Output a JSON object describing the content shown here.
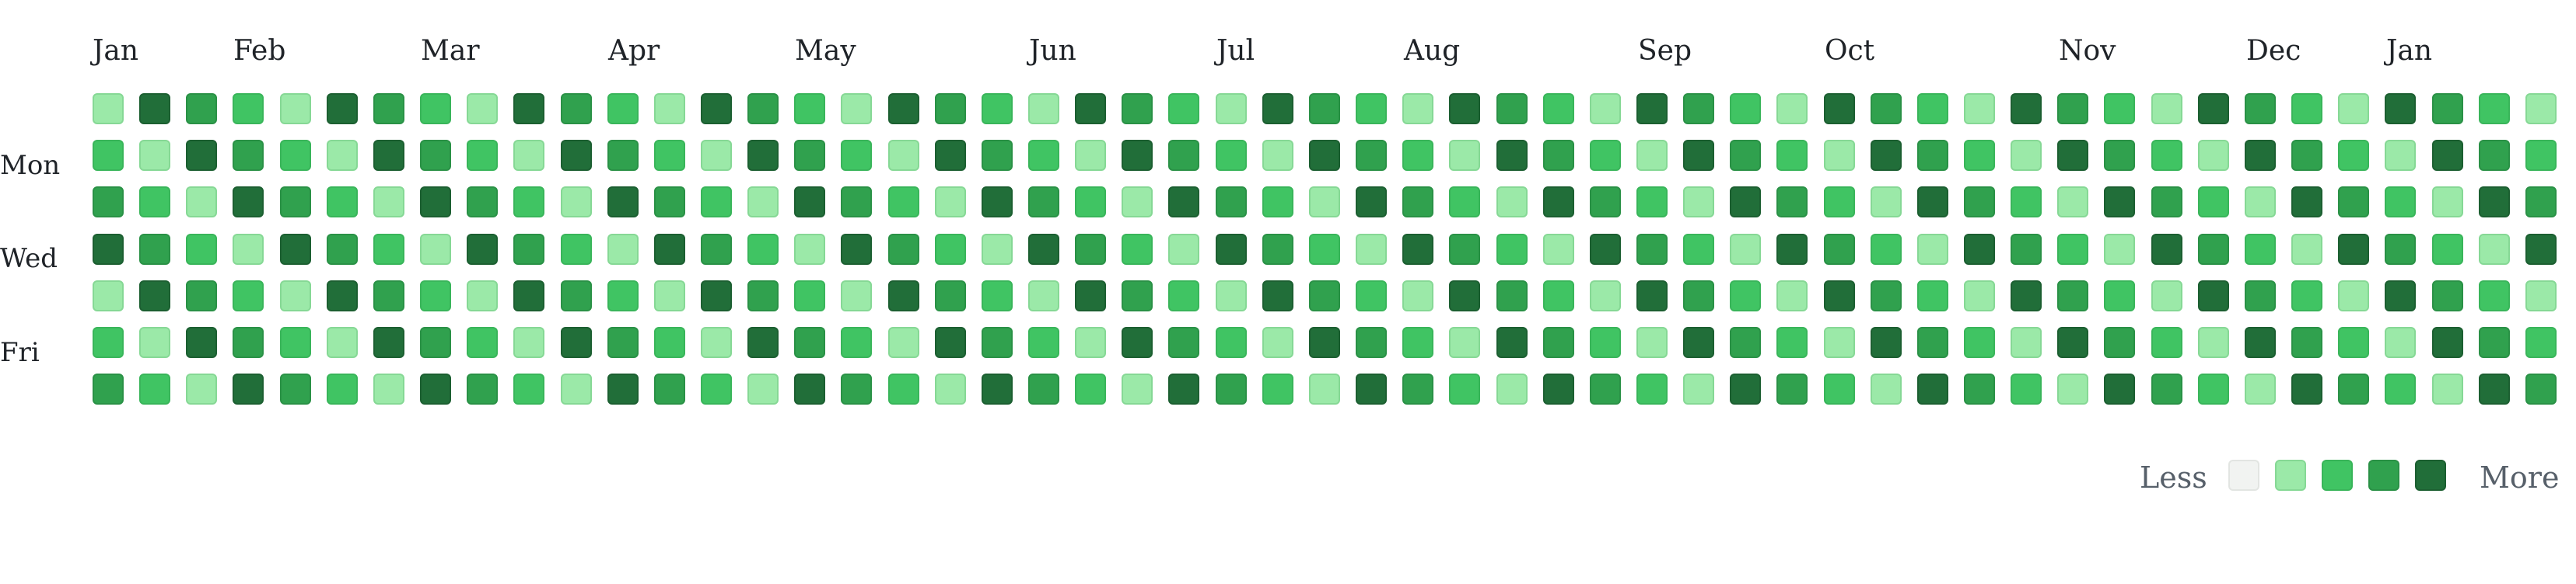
{
  "graph": {
    "months": [
      "Jan",
      "Feb",
      "Mar",
      "Apr",
      "May",
      "Jun",
      "Jul",
      "Aug",
      "Sep",
      "Oct",
      "Nov",
      "Dec",
      "Jan"
    ],
    "day_labels": [
      "Mon",
      "Wed",
      "Fri"
    ],
    "weeks": 53,
    "days_per_week": 7,
    "levels": [
      [
        1,
        4,
        3,
        2,
        1,
        4,
        3,
        2,
        1,
        4,
        3,
        2,
        1,
        4,
        3,
        2,
        1,
        4,
        3,
        2,
        1,
        4,
        3,
        2,
        1,
        4,
        3,
        2,
        1,
        4,
        3,
        2,
        1,
        4,
        3,
        2,
        1,
        4,
        3,
        2,
        1,
        4,
        3,
        2,
        1,
        4,
        3,
        2,
        1,
        4,
        3,
        2,
        1
      ],
      [
        2,
        1,
        4,
        3,
        2,
        1,
        4,
        3,
        2,
        1,
        4,
        3,
        2,
        1,
        4,
        3,
        2,
        1,
        4,
        3,
        2,
        1,
        4,
        3,
        2,
        1,
        4,
        3,
        2,
        1,
        4,
        3,
        2,
        1,
        4,
        3,
        2,
        1,
        4,
        3,
        2,
        1,
        4,
        3,
        2,
        1,
        4,
        3,
        2,
        1,
        4,
        3,
        2
      ],
      [
        3,
        2,
        1,
        4,
        3,
        2,
        1,
        4,
        3,
        2,
        1,
        4,
        3,
        2,
        1,
        4,
        3,
        2,
        1,
        4,
        3,
        2,
        1,
        4,
        3,
        2,
        1,
        4,
        3,
        2,
        1,
        4,
        3,
        2,
        1,
        4,
        3,
        2,
        1,
        4,
        3,
        2,
        1,
        4,
        3,
        2,
        1,
        4,
        3,
        2,
        1,
        4,
        3
      ],
      [
        4,
        3,
        2,
        1,
        4,
        3,
        2,
        1,
        4,
        3,
        2,
        1,
        4,
        3,
        2,
        1,
        4,
        3,
        2,
        1,
        4,
        3,
        2,
        1,
        4,
        3,
        2,
        1,
        4,
        3,
        2,
        1,
        4,
        3,
        2,
        1,
        4,
        3,
        2,
        1,
        4,
        3,
        2,
        1,
        4,
        3,
        2,
        1,
        4,
        3,
        2,
        1,
        4
      ],
      [
        1,
        4,
        3,
        2,
        1,
        4,
        3,
        2,
        1,
        4,
        3,
        2,
        1,
        4,
        3,
        2,
        1,
        4,
        3,
        2,
        1,
        4,
        3,
        2,
        1,
        4,
        3,
        2,
        1,
        4,
        3,
        2,
        1,
        4,
        3,
        2,
        1,
        4,
        3,
        2,
        1,
        4,
        3,
        2,
        1,
        4,
        3,
        2,
        1,
        4,
        3,
        2,
        1
      ],
      [
        2,
        1,
        4,
        3,
        2,
        1,
        4,
        3,
        2,
        1,
        4,
        3,
        2,
        1,
        4,
        3,
        2,
        1,
        4,
        3,
        2,
        1,
        4,
        3,
        2,
        1,
        4,
        3,
        2,
        1,
        4,
        3,
        2,
        1,
        4,
        3,
        2,
        1,
        4,
        3,
        2,
        1,
        4,
        3,
        2,
        1,
        4,
        3,
        2,
        1,
        4,
        3,
        2
      ],
      [
        3,
        2,
        1,
        4,
        3,
        2,
        1,
        4,
        3,
        2,
        1,
        4,
        3,
        2,
        1,
        4,
        3,
        2,
        1,
        4,
        3,
        2,
        1,
        4,
        3,
        2,
        1,
        4,
        3,
        2,
        1,
        4,
        3,
        2,
        1,
        4,
        3,
        2,
        1,
        4,
        3,
        2,
        1,
        4,
        3,
        2,
        1,
        4,
        3,
        2,
        1,
        4,
        3
      ]
    ]
  },
  "legend": {
    "less_label": "Less",
    "more_label": "More",
    "levels": [
      0,
      1,
      2,
      3,
      4
    ]
  },
  "colors": {
    "level0": "#f1f3f1",
    "level1": "#9be9a8",
    "level2": "#40c463",
    "level3": "#30a14e",
    "level4": "#216e39"
  }
}
